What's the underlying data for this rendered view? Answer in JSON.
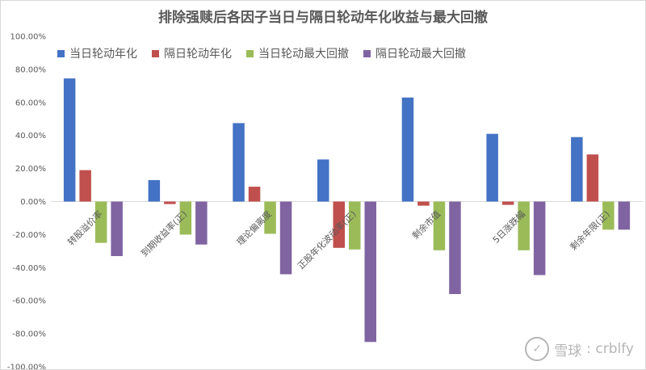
{
  "chart_data": {
    "type": "bar",
    "title": "排除强赎后各因子当日与隔日轮动年化收益与最大回撤",
    "categories": [
      "转股溢价率",
      "到期收益率(正)",
      "理论偏离度",
      "正股年化波动率(正)",
      "剩余市值",
      "5日涨跌幅",
      "剩余年限(正)"
    ],
    "series": [
      {
        "name": "当日轮动年化",
        "color": "#4472C4",
        "values": [
          74.5,
          13,
          47.5,
          25.5,
          63,
          41,
          39
        ]
      },
      {
        "name": "隔日轮动年化",
        "color": "#C0504D",
        "values": [
          19,
          -1.5,
          9,
          -28,
          -2.5,
          -2,
          28.5
        ]
      },
      {
        "name": "当日轮动最大回撤",
        "color": "#9BBB59",
        "values": [
          -25,
          -20,
          -19.5,
          -29,
          -29.5,
          -29.5,
          -17
        ]
      },
      {
        "name": "隔日轮动最大回撤",
        "color": "#8064A2",
        "values": [
          -33,
          -26,
          -44,
          -85,
          -56,
          -44.5,
          -17
        ]
      }
    ],
    "yticks": [
      "100.00%",
      "80.00%",
      "60.00%",
      "40.00%",
      "20.00%",
      "0.00%",
      "-20.00%",
      "-40.00%",
      "-60.00%",
      "-80.00%",
      "-100.00%"
    ],
    "ylim": [
      -100,
      100
    ],
    "grid": false,
    "legend_position": "top-left"
  },
  "watermark": {
    "brand": "雪球",
    "user": ": crblfy",
    "logo_glyph": "✓"
  }
}
